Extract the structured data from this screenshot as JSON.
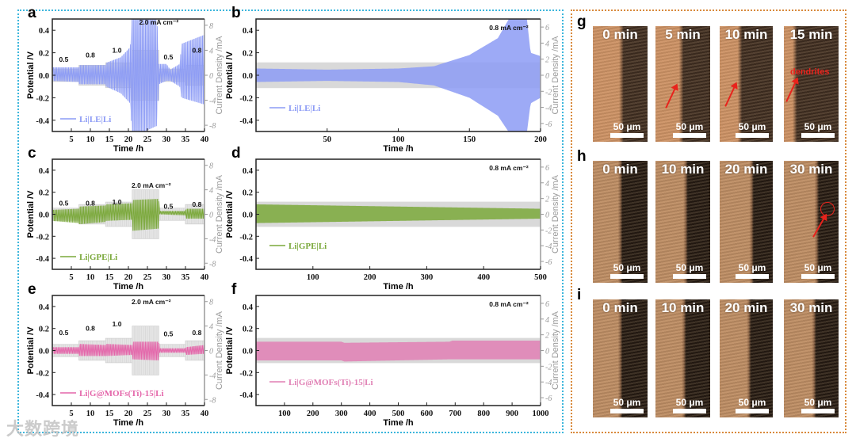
{
  "watermark": "大数跨境",
  "chart_data": [
    {
      "panel_label": "a",
      "type": "line",
      "xlabel": "Time /h",
      "ylabel": "Potential /V",
      "y2label": "Current Density /mA",
      "xlim": [
        0,
        40
      ],
      "ylim": [
        -0.5,
        0.5
      ],
      "y2lim": [
        -9,
        9
      ],
      "xticks": [
        5,
        10,
        15,
        20,
        25,
        30,
        35,
        40
      ],
      "xtick_labels": [
        "5",
        "10",
        "15",
        "20",
        "25",
        "30",
        "35",
        "40"
      ],
      "yticks": [
        0.4,
        0.2,
        0,
        -0.2,
        -0.4
      ],
      "ytick_labels": [
        "0.4",
        "0.2",
        "0.0",
        "-0.2",
        "-0.4"
      ],
      "y2ticks": [
        8,
        4,
        0,
        -4,
        -8
      ],
      "y2tick_labels": [
        "8",
        "4",
        "0",
        "-4",
        "-8"
      ],
      "legend": "Li|LE|Li",
      "color": "#8c9bf5",
      "current_steps": [
        {
          "t": [
            0,
            7
          ],
          "mA": 1.0
        },
        {
          "t": [
            7,
            14
          ],
          "mA": 1.6
        },
        {
          "t": [
            14,
            21
          ],
          "mA": 2.0
        },
        {
          "t": [
            21,
            28
          ],
          "mA": 4.0
        },
        {
          "t": [
            28,
            35
          ],
          "mA": 1.0
        },
        {
          "t": [
            35,
            40
          ],
          "mA": 1.6
        }
      ],
      "annotations": [
        "0.5",
        "0.8",
        "1.0",
        "2.0 mA cm⁻²",
        "0.5",
        "0.8"
      ],
      "envelope": [
        [
          0,
          0.07,
          -0.05
        ],
        [
          7,
          0.07,
          -0.06
        ],
        [
          7.1,
          0.09,
          -0.08
        ],
        [
          14,
          0.09,
          -0.08
        ],
        [
          14.1,
          0.11,
          -0.1
        ],
        [
          18,
          0.16,
          -0.16
        ],
        [
          20.5,
          0.25,
          -0.25
        ],
        [
          21,
          0.55,
          -0.55
        ],
        [
          27.5,
          0.5,
          -0.45
        ],
        [
          28,
          0.1,
          -0.08
        ],
        [
          30,
          0.1,
          -0.05
        ],
        [
          31,
          0.05,
          -0.05
        ],
        [
          33.5,
          0.1,
          -0.1
        ],
        [
          34,
          0.28,
          -0.2
        ],
        [
          40,
          0.36,
          -0.26
        ]
      ]
    },
    {
      "panel_label": "b",
      "type": "line",
      "xlabel": "Time /h",
      "ylabel": "Potential /V",
      "y2label": "Current Density /mA",
      "xlim": [
        0,
        200
      ],
      "ylim": [
        -0.5,
        0.5
      ],
      "y2lim": [
        -7,
        7
      ],
      "xticks": [
        50,
        100,
        150,
        200
      ],
      "xtick_labels": [
        "50",
        "100",
        "150",
        "200"
      ],
      "yticks": [
        0.4,
        0.2,
        0,
        -0.2,
        -0.4
      ],
      "ytick_labels": [
        "0.4",
        "0.2",
        "0.0",
        "-0.2",
        "-0.4"
      ],
      "y2ticks": [
        6,
        4,
        2,
        0,
        -2,
        -4,
        -6
      ],
      "y2tick_labels": [
        "6",
        "4",
        "2",
        "0",
        "-2",
        "-4",
        "-6"
      ],
      "legend": "Li|LE|Li",
      "color": "#8c9bf5",
      "current_steps": [
        {
          "t": [
            0,
            200
          ],
          "mA": 1.6
        }
      ],
      "annotations": [
        "0.8 mA cm⁻²"
      ],
      "envelope": [
        [
          0,
          0.06,
          -0.06
        ],
        [
          50,
          0.05,
          -0.05
        ],
        [
          100,
          0.06,
          -0.06
        ],
        [
          125,
          0.08,
          -0.09
        ],
        [
          150,
          0.18,
          -0.2
        ],
        [
          170,
          0.33,
          -0.36
        ],
        [
          180,
          0.55,
          -0.55
        ],
        [
          190,
          0.55,
          -0.55
        ],
        [
          193,
          0.2,
          -0.25
        ],
        [
          200,
          0.17,
          -0.2
        ]
      ]
    },
    {
      "panel_label": "c",
      "type": "line",
      "xlabel": "Time /h",
      "ylabel": "Potential /V",
      "y2label": "Current Density /mA",
      "xlim": [
        0,
        40
      ],
      "ylim": [
        -0.5,
        0.5
      ],
      "y2lim": [
        -9,
        9
      ],
      "xticks": [
        5,
        10,
        15,
        20,
        25,
        30,
        35,
        40
      ],
      "xtick_labels": [
        "5",
        "10",
        "15",
        "20",
        "25",
        "30",
        "35",
        "40"
      ],
      "yticks": [
        0.4,
        0.2,
        0,
        -0.2,
        -0.4
      ],
      "ytick_labels": [
        "0.4",
        "0.2",
        "0.0",
        "-0.2",
        "-0.4"
      ],
      "y2ticks": [
        8,
        4,
        0,
        -4,
        -8
      ],
      "y2tick_labels": [
        "8",
        "4",
        "0",
        "-4",
        "-8"
      ],
      "legend": "Li|GPE|Li",
      "color": "#7aa83a",
      "current_steps": [
        {
          "t": [
            0,
            7
          ],
          "mA": 1.0
        },
        {
          "t": [
            7,
            14
          ],
          "mA": 1.6
        },
        {
          "t": [
            14,
            21
          ],
          "mA": 2.0
        },
        {
          "t": [
            21,
            28
          ],
          "mA": 4.0
        },
        {
          "t": [
            28,
            35
          ],
          "mA": 1.0
        },
        {
          "t": [
            35,
            40
          ],
          "mA": 1.6
        }
      ],
      "annotations": [
        "0.5",
        "0.8",
        "1.0",
        "2.0 mA cm⁻²",
        "0.5",
        "0.8"
      ],
      "envelope": [
        [
          0,
          0.04,
          -0.06
        ],
        [
          7,
          0.05,
          -0.08
        ],
        [
          7.1,
          0.07,
          -0.09
        ],
        [
          14,
          0.08,
          -0.07
        ],
        [
          14.1,
          0.09,
          -0.06
        ],
        [
          21,
          0.1,
          -0.05
        ],
        [
          21.1,
          0.13,
          -0.15
        ],
        [
          28,
          0.14,
          -0.13
        ],
        [
          28.1,
          0.03,
          0.0
        ],
        [
          35,
          0.03,
          -0.01
        ],
        [
          35.1,
          0.05,
          -0.04
        ],
        [
          40,
          0.05,
          -0.04
        ]
      ]
    },
    {
      "panel_label": "d",
      "type": "line",
      "xlabel": "Time /h",
      "ylabel": "Potential /V",
      "y2label": "Current Density /mA",
      "xlim": [
        0,
        500
      ],
      "ylim": [
        -0.5,
        0.5
      ],
      "y2lim": [
        -7,
        7
      ],
      "xticks": [
        100,
        200,
        300,
        400,
        500
      ],
      "xtick_labels": [
        "100",
        "200",
        "300",
        "400",
        "500"
      ],
      "yticks": [
        0.4,
        0.2,
        0,
        -0.2,
        -0.4
      ],
      "ytick_labels": [
        "0.4",
        "0.2",
        "0.0",
        "-0.2",
        "-0.4"
      ],
      "y2ticks": [
        6,
        4,
        2,
        0,
        -2,
        -4,
        -6
      ],
      "y2tick_labels": [
        "6",
        "4",
        "2",
        "0",
        "-2",
        "-4",
        "-6"
      ],
      "legend": "Li|GPE|Li",
      "color": "#7aa83a",
      "current_steps": [
        {
          "t": [
            0,
            500
          ],
          "mA": 1.6
        }
      ],
      "annotations": [
        "0.8 mA cm⁻²"
      ],
      "envelope": [
        [
          0,
          0.09,
          -0.08
        ],
        [
          250,
          0.07,
          -0.06
        ],
        [
          500,
          0.05,
          -0.04
        ]
      ]
    },
    {
      "panel_label": "e",
      "type": "line",
      "xlabel": "Time /h",
      "ylabel": "Potential /V",
      "y2label": "Current Density /mA",
      "xlim": [
        0,
        40
      ],
      "ylim": [
        -0.5,
        0.5
      ],
      "y2lim": [
        -9,
        9
      ],
      "xticks": [
        5,
        10,
        15,
        20,
        25,
        30,
        35,
        40
      ],
      "xtick_labels": [
        "5",
        "10",
        "15",
        "20",
        "25",
        "30",
        "35",
        "40"
      ],
      "yticks": [
        0.4,
        0.2,
        0,
        -0.2,
        -0.4
      ],
      "ytick_labels": [
        "0.4",
        "0.2",
        "0.0",
        "-0.2",
        "-0.4"
      ],
      "y2ticks": [
        8,
        4,
        0,
        -4,
        -8
      ],
      "y2tick_labels": [
        "8",
        "4",
        "0",
        "-4",
        "-8"
      ],
      "legend": "Li|G@MOFs(Ti)-15|Li",
      "color": "#e466aa",
      "current_steps": [
        {
          "t": [
            0,
            7
          ],
          "mA": 1.0
        },
        {
          "t": [
            7,
            14
          ],
          "mA": 1.6
        },
        {
          "t": [
            14,
            21
          ],
          "mA": 2.0
        },
        {
          "t": [
            21,
            28
          ],
          "mA": 4.0
        },
        {
          "t": [
            28,
            35
          ],
          "mA": 1.0
        },
        {
          "t": [
            35,
            40
          ],
          "mA": 1.6
        }
      ],
      "annotations": [
        "0.5",
        "0.8",
        "1.0",
        "2.0 mA cm⁻²",
        "0.5",
        "0.8"
      ],
      "envelope": [
        [
          0,
          0.03,
          -0.03
        ],
        [
          7,
          0.03,
          -0.03
        ],
        [
          7.1,
          0.06,
          -0.05
        ],
        [
          14,
          0.05,
          -0.05
        ],
        [
          14.1,
          0.06,
          -0.05
        ],
        [
          21,
          0.05,
          -0.04
        ],
        [
          21.1,
          0.08,
          -0.08
        ],
        [
          28,
          0.08,
          -0.09
        ],
        [
          28.1,
          0.02,
          -0.02
        ],
        [
          35,
          0.02,
          -0.02
        ],
        [
          35.1,
          0.03,
          -0.04
        ],
        [
          40,
          0.05,
          -0.03
        ]
      ]
    },
    {
      "panel_label": "f",
      "type": "line",
      "xlabel": "Time /h",
      "ylabel": "Potential /V",
      "y2label": "Current Density /mA",
      "xlim": [
        0,
        1000
      ],
      "ylim": [
        -0.5,
        0.5
      ],
      "y2lim": [
        -7,
        7
      ],
      "xticks": [
        100,
        200,
        300,
        400,
        500,
        600,
        700,
        800,
        900,
        1000
      ],
      "xtick_labels": [
        "100",
        "200",
        "300",
        "400",
        "500",
        "600",
        "700",
        "800",
        "900",
        "1000"
      ],
      "yticks": [
        0.4,
        0.2,
        0,
        -0.2,
        -0.4
      ],
      "ytick_labels": [
        "0.4",
        "0.2",
        "0.0",
        "-0.2",
        "-0.4"
      ],
      "y2ticks": [
        6,
        4,
        2,
        0,
        -2,
        -4,
        -6
      ],
      "y2tick_labels": [
        "6",
        "4",
        "2",
        "0",
        "-2",
        "-4",
        "-6"
      ],
      "legend": "Li|G@MOFs(Ti)-15|Li",
      "color": "#e07fb4",
      "current_steps": [
        {
          "t": [
            0,
            1000
          ],
          "mA": 1.6
        }
      ],
      "annotations": [
        "0.8 mA cm⁻²"
      ],
      "envelope": [
        [
          0,
          0.08,
          -0.09
        ],
        [
          300,
          0.08,
          -0.09
        ],
        [
          310,
          0.07,
          -0.1
        ],
        [
          680,
          0.08,
          -0.08
        ],
        [
          690,
          0.09,
          -0.08
        ],
        [
          1000,
          0.09,
          -0.08
        ]
      ]
    }
  ],
  "microscopy": [
    {
      "panel_label": "g",
      "frames": [
        {
          "time": "0 min",
          "scale": "50 μm"
        },
        {
          "time": "5 min",
          "scale": "50 μm"
        },
        {
          "time": "10 min",
          "scale": "50 μm"
        },
        {
          "time": "15 min",
          "scale": "50 μm",
          "note": "dendrites"
        }
      ]
    },
    {
      "panel_label": "h",
      "frames": [
        {
          "time": "0 min",
          "scale": "50 μm"
        },
        {
          "time": "10 min",
          "scale": "50 μm"
        },
        {
          "time": "20 min",
          "scale": "50 μm"
        },
        {
          "time": "30 min",
          "scale": "50 μm"
        }
      ]
    },
    {
      "panel_label": "i",
      "frames": [
        {
          "time": "0 min",
          "scale": "50 μm"
        },
        {
          "time": "10 min",
          "scale": "50 μm"
        },
        {
          "time": "20 min",
          "scale": "50 μm"
        },
        {
          "time": "30 min",
          "scale": "50 μm"
        }
      ]
    }
  ]
}
